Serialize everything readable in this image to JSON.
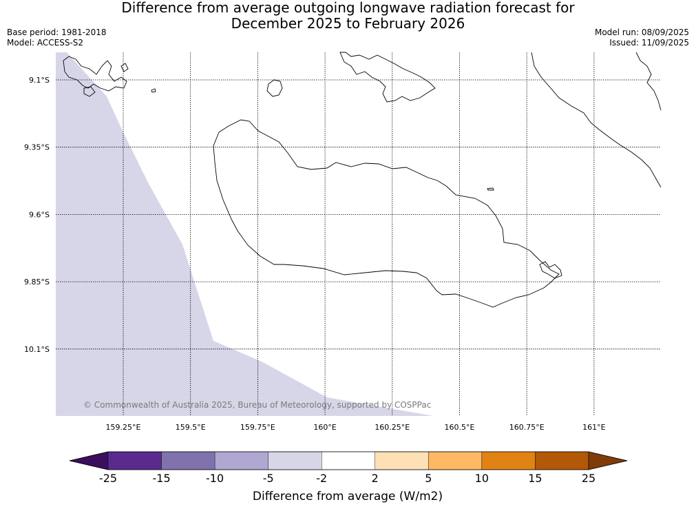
{
  "title": {
    "line1": "Difference from average outgoing longwave radiation forecast for",
    "line2": "December 2025 to February 2026"
  },
  "meta_left": {
    "base_period": "Base period: 1981-2018",
    "model": "Model: ACCESS-S2"
  },
  "meta_right": {
    "model_run": "Model run: 08/09/2025",
    "issued": "Issued: 11/09/2025"
  },
  "map": {
    "lon_ticks": [
      "159.25°E",
      "159.5°E",
      "159.75°E",
      "160°E",
      "160.25°E",
      "160.5°E",
      "160.75°E",
      "161°E"
    ],
    "lat_ticks": [
      "9.1°S",
      "9.35°S",
      "9.6°S",
      "9.85°S",
      "10.1°S"
    ],
    "copyright": "© Commonwealth of Australia 2025, Bureau of Meteorology, supported by COSPPac",
    "shaded_category_color": "#d6d6e8"
  },
  "colorbar": {
    "title": "Difference from average (W/m2)",
    "labels": [
      "-25",
      "-15",
      "-10",
      "-5",
      "-2",
      "2",
      "5",
      "10",
      "15",
      "25"
    ],
    "colors": [
      "#3b0f5e",
      "#5a2a8c",
      "#8073ad",
      "#b0a8d2",
      "#d6d6e8",
      "#ffffff",
      "#fee0b6",
      "#fdb863",
      "#e08214",
      "#b35806",
      "#7f3b08"
    ]
  }
}
